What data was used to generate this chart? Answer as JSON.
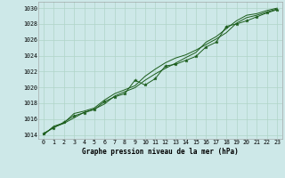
{
  "title": "Graphe pression niveau de la mer (hPa)",
  "bg_color": "#cde8e8",
  "grid_color": "#b0d4c8",
  "line_color": "#1a5c1a",
  "marker_color": "#1a5c1a",
  "xlim": [
    -0.5,
    23.5
  ],
  "ylim": [
    1013.5,
    1030.8
  ],
  "yticks": [
    1014,
    1016,
    1018,
    1020,
    1022,
    1024,
    1026,
    1028,
    1030
  ],
  "xticks": [
    0,
    1,
    2,
    3,
    4,
    5,
    6,
    7,
    8,
    9,
    10,
    11,
    12,
    13,
    14,
    15,
    16,
    17,
    18,
    19,
    20,
    21,
    22,
    23
  ],
  "series1": [
    1014.2,
    1014.9,
    1015.6,
    1016.4,
    1016.8,
    1017.2,
    1018.2,
    1018.8,
    1019.2,
    1020.9,
    1020.3,
    1021.1,
    1022.7,
    1022.9,
    1023.4,
    1023.9,
    1025.1,
    1025.7,
    1027.7,
    1028.0,
    1028.4,
    1028.9,
    1029.4,
    1029.8
  ],
  "series2": [
    1014.0,
    1015.1,
    1015.5,
    1016.7,
    1017.0,
    1017.4,
    1018.4,
    1019.2,
    1019.7,
    1020.2,
    1021.4,
    1022.3,
    1023.1,
    1023.7,
    1024.1,
    1024.7,
    1025.4,
    1026.1,
    1026.9,
    1028.1,
    1028.8,
    1029.1,
    1029.5,
    1029.9
  ],
  "series3": [
    1014.1,
    1014.95,
    1015.45,
    1016.15,
    1016.85,
    1017.25,
    1017.9,
    1018.9,
    1019.45,
    1019.95,
    1020.9,
    1021.7,
    1022.4,
    1023.05,
    1023.75,
    1024.4,
    1025.7,
    1026.4,
    1027.4,
    1028.4,
    1029.1,
    1029.3,
    1029.7,
    1030.0
  ]
}
